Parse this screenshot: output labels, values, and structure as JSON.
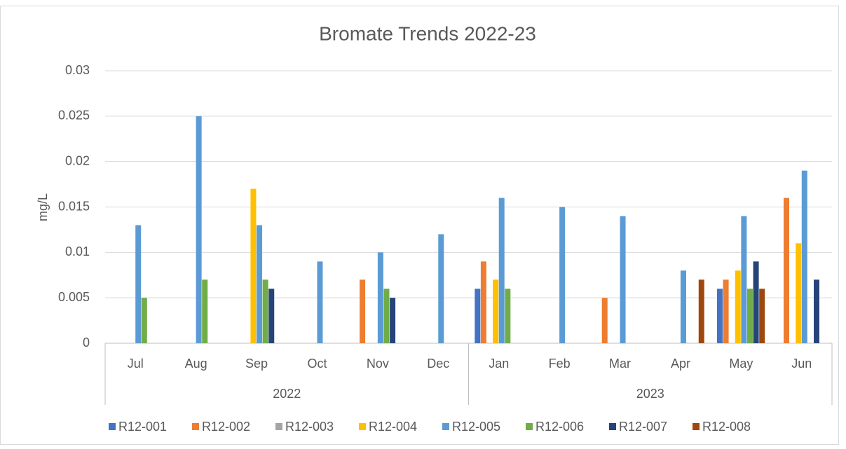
{
  "chart_data": {
    "type": "bar",
    "title": "Bromate Trends 2022-23",
    "y_label": "mg/L",
    "categories": [
      "Jul",
      "Aug",
      "Sep",
      "Oct",
      "Nov",
      "Dec",
      "Jan",
      "Feb",
      "Mar",
      "Apr",
      "May",
      "Jun"
    ],
    "category_groups": [
      {
        "name": "2022",
        "count": 6
      },
      {
        "name": "2023",
        "count": 6
      }
    ],
    "series": [
      {
        "name": "R12-001",
        "color": "#4472c4",
        "values": [
          null,
          null,
          null,
          null,
          null,
          null,
          0.006,
          null,
          null,
          null,
          0.006,
          null
        ]
      },
      {
        "name": "R12-002",
        "color": "#ed7d31",
        "values": [
          null,
          null,
          null,
          null,
          0.007,
          null,
          0.009,
          null,
          0.005,
          null,
          0.007,
          0.016
        ]
      },
      {
        "name": "R12-003",
        "color": "#a5a5a5",
        "values": [
          null,
          null,
          null,
          null,
          null,
          null,
          null,
          null,
          null,
          null,
          null,
          null
        ]
      },
      {
        "name": "R12-004",
        "color": "#ffc000",
        "values": [
          null,
          null,
          0.017,
          null,
          null,
          null,
          0.007,
          null,
          null,
          null,
          0.008,
          0.011
        ]
      },
      {
        "name": "R12-005",
        "color": "#5b9bd5",
        "values": [
          0.013,
          0.025,
          0.013,
          0.009,
          0.01,
          0.012,
          0.016,
          0.015,
          0.014,
          0.008,
          0.014,
          0.019
        ]
      },
      {
        "name": "R12-006",
        "color": "#70ad47",
        "values": [
          0.005,
          0.007,
          0.007,
          null,
          0.006,
          null,
          0.006,
          null,
          null,
          null,
          0.006,
          null
        ]
      },
      {
        "name": "R12-007",
        "color": "#264478",
        "values": [
          null,
          null,
          0.006,
          null,
          0.005,
          null,
          null,
          null,
          null,
          null,
          0.009,
          0.007
        ]
      },
      {
        "name": "R12-008",
        "color": "#9e480e",
        "values": [
          null,
          null,
          null,
          null,
          null,
          null,
          null,
          null,
          null,
          0.007,
          0.006,
          null
        ]
      }
    ],
    "ylim": [
      0,
      0.03
    ],
    "yticks": [
      0,
      0.005,
      0.01,
      0.015,
      0.02,
      0.025,
      0.03
    ],
    "grid": true,
    "legend": "bottom"
  }
}
